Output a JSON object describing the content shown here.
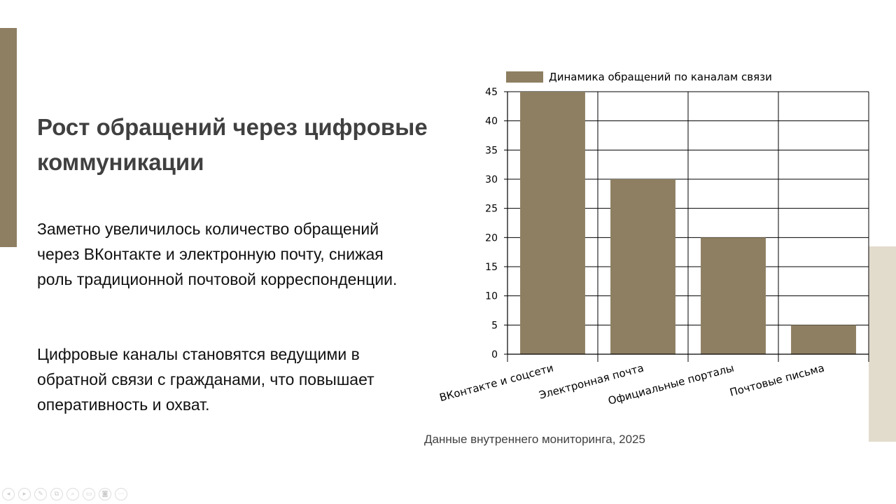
{
  "slide": {
    "title": "Рост обращений через цифровые коммуникации",
    "paragraphs": [
      "Заметно увеличилось количество обращений через ВКонтакте и электронную почту, снижая роль традиционной почтовой корреспонденции.",
      "Цифровые каналы становятся ведущими в обратной связи с гражданами, что повышает оперативность и охват."
    ],
    "source": "Данные внутреннего мониторинга, 2025",
    "accent_colors": {
      "primary": "#8e7f62",
      "secondary": "#e2dccd"
    }
  },
  "chart_data": {
    "type": "bar",
    "categories": [
      "ВКонтакте и соцсети",
      "Электронная почта",
      "Официальные порталы",
      "Почтовые письма"
    ],
    "series": [
      {
        "name": "Динамика обращений по каналам связи",
        "values": [
          45,
          30,
          20,
          5
        ],
        "color": "#8e7f62"
      }
    ],
    "ylim": [
      0,
      45
    ],
    "yticks": [
      0,
      5,
      10,
      15,
      20,
      25,
      30,
      35,
      40,
      45
    ],
    "grid": true,
    "legend": "top"
  },
  "toolbar": {
    "buttons": [
      {
        "icon": "prev-arrow-icon",
        "glyph": "◂"
      },
      {
        "icon": "next-arrow-icon",
        "glyph": "▸"
      },
      {
        "icon": "pen-icon",
        "glyph": "✎"
      },
      {
        "icon": "copy-icon",
        "glyph": "⧉"
      },
      {
        "icon": "zoom-icon",
        "glyph": "⌕"
      },
      {
        "icon": "subtitles-icon",
        "glyph": "▭"
      },
      {
        "icon": "camera-icon",
        "glyph": "◙"
      },
      {
        "icon": "more-icon",
        "glyph": "⋯"
      }
    ]
  }
}
